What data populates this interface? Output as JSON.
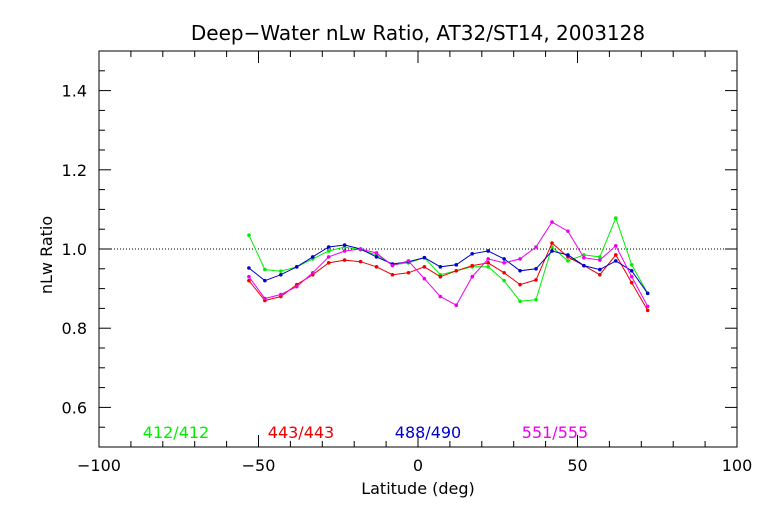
{
  "chart_data": {
    "type": "line",
    "title": "Deep−Water nLw Ratio, AT32/ST14, 2003128",
    "xlabel": "Latitude (deg)",
    "ylabel": "nLw Ratio",
    "xlim": [
      -100,
      100
    ],
    "ylim": [
      0.5,
      1.5
    ],
    "x_ticks": [
      -100,
      -50,
      0,
      50,
      100
    ],
    "x_tick_labels": [
      "−100",
      "−50",
      "0",
      "50",
      "100"
    ],
    "y_ticks": [
      0.6,
      0.8,
      1.0,
      1.2,
      1.4
    ],
    "y_tick_labels": [
      "0.6",
      "0.8",
      "1.0",
      "1.2",
      "1.4"
    ],
    "grid": false,
    "reference_line": {
      "y": 1.0,
      "style": "dotted"
    },
    "legend": "bottom, inside plot",
    "x": [
      -53,
      -48,
      -43,
      -38,
      -33,
      -28,
      -23,
      -18,
      -13,
      -8,
      -3,
      2,
      7,
      12,
      17,
      22,
      27,
      32,
      37,
      42,
      47,
      52,
      57,
      62,
      67,
      72
    ],
    "series": [
      {
        "name": "412/412",
        "color": "#00ee00",
        "values": [
          1.035,
          0.948,
          0.944,
          0.955,
          0.975,
          0.995,
          1.005,
          0.998,
          0.985,
          0.96,
          0.965,
          0.978,
          0.935,
          0.945,
          0.955,
          0.955,
          0.92,
          0.868,
          0.872,
          1.005,
          0.97,
          0.985,
          0.98,
          1.078,
          0.96,
          0.888
        ]
      },
      {
        "name": "443/443",
        "color": "#ee0000",
        "values": [
          0.92,
          0.87,
          0.88,
          0.91,
          0.935,
          0.965,
          0.972,
          0.968,
          0.955,
          0.935,
          0.94,
          0.955,
          0.93,
          0.945,
          0.958,
          0.965,
          0.94,
          0.91,
          0.922,
          1.015,
          0.98,
          0.958,
          0.935,
          0.985,
          0.915,
          0.845
        ]
      },
      {
        "name": "488/490",
        "color": "#0000cc",
        "values": [
          0.952,
          0.92,
          0.935,
          0.955,
          0.98,
          1.005,
          1.01,
          1.0,
          0.98,
          0.962,
          0.968,
          0.978,
          0.955,
          0.96,
          0.988,
          0.995,
          0.975,
          0.945,
          0.95,
          0.995,
          0.985,
          0.958,
          0.948,
          0.97,
          0.945,
          0.888
        ]
      },
      {
        "name": "551/555",
        "color": "#ee00ee",
        "values": [
          0.93,
          0.875,
          0.885,
          0.905,
          0.94,
          0.98,
          0.995,
          1.0,
          0.99,
          0.958,
          0.97,
          0.925,
          0.88,
          0.858,
          0.93,
          0.975,
          0.965,
          0.975,
          1.005,
          1.068,
          1.045,
          0.978,
          0.972,
          1.008,
          0.93,
          0.855
        ]
      }
    ]
  }
}
